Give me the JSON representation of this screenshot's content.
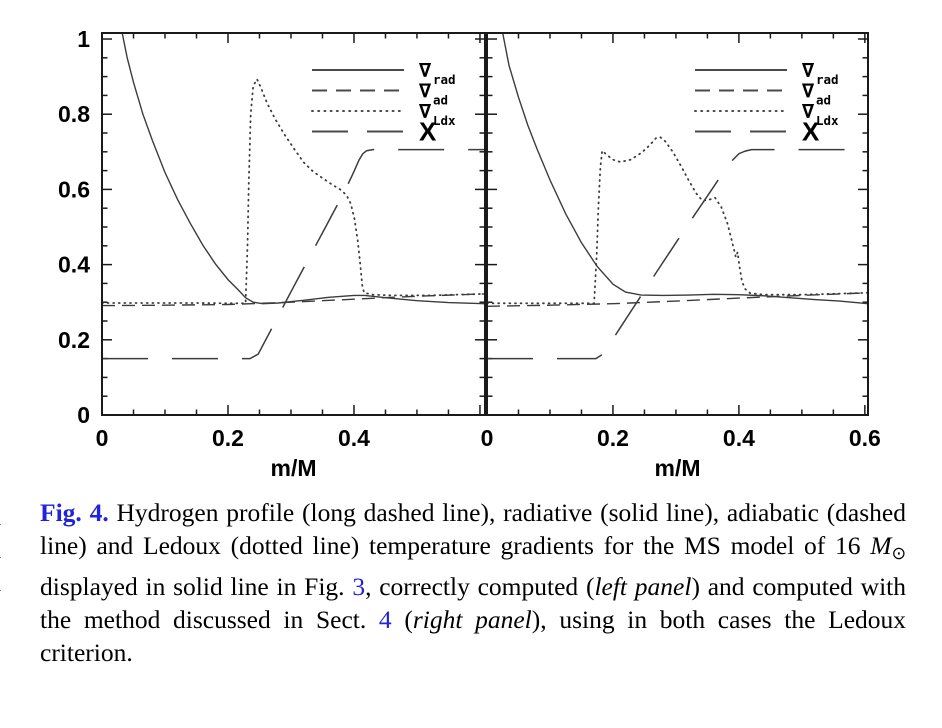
{
  "colors": {
    "curve": "#3c3c3c",
    "frame": "#1a1a1a",
    "text": "#000000",
    "link_blue": "#2222dd"
  },
  "figure": {
    "margin_fragments": [
      "1",
      "1",
      "1"
    ],
    "caption_segments": [
      {
        "text": "Fig. 4.",
        "style": "figlabel"
      },
      {
        "text": " Hydrogen profile (long dashed line), radiative (solid line), adiabatic (dashed line) and Ledoux (dotted line) temperature gradients for the MS model of 16 ",
        "style": "plain"
      },
      {
        "text": "M",
        "style": "italic"
      },
      {
        "text": "⊙",
        "style": "sub"
      },
      {
        "text": " displayed in solid line in Fig. ",
        "style": "plain"
      },
      {
        "text": "3",
        "style": "link"
      },
      {
        "text": ", correctly computed (",
        "style": "plain"
      },
      {
        "text": "left panel",
        "style": "italic"
      },
      {
        "text": ") and computed with the method discussed in Sect. ",
        "style": "plain"
      },
      {
        "text": "4",
        "style": "link"
      },
      {
        "text": " (",
        "style": "plain"
      },
      {
        "text": "right panel",
        "style": "italic"
      },
      {
        "text": "), using in both cases the Ledoux criterion.",
        "style": "plain"
      }
    ]
  },
  "chart_data": [
    {
      "type": "line",
      "panel": "left",
      "xlabel": "m/M",
      "xlim": [
        0,
        0.608
      ],
      "ylim": [
        0,
        1.016
      ],
      "x_minor_step": 0.05,
      "y_minor_step": 0.05,
      "show_y_labels": true,
      "x_ticks": [
        {
          "v": 0,
          "label": "0"
        },
        {
          "v": 0.2,
          "label": "0.2"
        },
        {
          "v": 0.4,
          "label": "0.4"
        },
        {
          "v": 0.6,
          "label": ""
        }
      ],
      "y_ticks": [
        {
          "v": 0,
          "label": "0"
        },
        {
          "v": 0.2,
          "label": "0.2"
        },
        {
          "v": 0.4,
          "label": "0.4"
        },
        {
          "v": 0.6,
          "label": "0.6"
        },
        {
          "v": 0.8,
          "label": "0.8"
        },
        {
          "v": 1,
          "label": "1"
        }
      ],
      "legend": [
        {
          "label": "∇",
          "sub": "rad",
          "style": "solid"
        },
        {
          "label": "∇",
          "sub": "ad",
          "style": "dashed"
        },
        {
          "label": "∇",
          "sub": "Ldx",
          "style": "dotted"
        },
        {
          "label": "X",
          "sub": "",
          "style": "longdash"
        }
      ],
      "series": [
        {
          "name": "nabla_rad",
          "style": "solid",
          "points": [
            [
              0.032,
              1.016
            ],
            [
              0.04,
              0.95
            ],
            [
              0.05,
              0.885
            ],
            [
              0.065,
              0.8
            ],
            [
              0.08,
              0.73
            ],
            [
              0.1,
              0.645
            ],
            [
              0.12,
              0.573
            ],
            [
              0.14,
              0.51
            ],
            [
              0.16,
              0.452
            ],
            [
              0.18,
              0.402
            ],
            [
              0.2,
              0.36
            ],
            [
              0.215,
              0.335
            ],
            [
              0.228,
              0.312
            ],
            [
              0.24,
              0.3
            ],
            [
              0.255,
              0.296
            ],
            [
              0.28,
              0.298
            ],
            [
              0.32,
              0.305
            ],
            [
              0.36,
              0.313
            ],
            [
              0.4,
              0.318
            ],
            [
              0.417,
              0.318
            ],
            [
              0.45,
              0.312
            ],
            [
              0.5,
              0.304
            ],
            [
              0.55,
              0.299
            ],
            [
              0.607,
              0.296
            ]
          ]
        },
        {
          "name": "nabla_ad",
          "style": "dashed",
          "points": [
            [
              0,
              0.291
            ],
            [
              0.1,
              0.292
            ],
            [
              0.2,
              0.294
            ],
            [
              0.3,
              0.3
            ],
            [
              0.4,
              0.308
            ],
            [
              0.46,
              0.313
            ],
            [
              0.52,
              0.317
            ],
            [
              0.607,
              0.322
            ]
          ]
        },
        {
          "name": "nabla_Ldx",
          "style": "dotted",
          "points": [
            [
              0,
              0.298
            ],
            [
              0.08,
              0.298
            ],
            [
              0.15,
              0.298
            ],
            [
              0.2,
              0.297
            ],
            [
              0.228,
              0.297
            ],
            [
              0.231,
              0.45
            ],
            [
              0.233,
              0.62
            ],
            [
              0.236,
              0.8
            ],
            [
              0.24,
              0.875
            ],
            [
              0.246,
              0.893
            ],
            [
              0.252,
              0.872
            ],
            [
              0.262,
              0.83
            ],
            [
              0.275,
              0.787
            ],
            [
              0.29,
              0.745
            ],
            [
              0.305,
              0.708
            ],
            [
              0.32,
              0.672
            ],
            [
              0.335,
              0.648
            ],
            [
              0.35,
              0.63
            ],
            [
              0.365,
              0.613
            ],
            [
              0.378,
              0.6
            ],
            [
              0.388,
              0.585
            ],
            [
              0.395,
              0.562
            ],
            [
              0.401,
              0.52
            ],
            [
              0.406,
              0.462
            ],
            [
              0.41,
              0.4
            ],
            [
              0.413,
              0.345
            ],
            [
              0.416,
              0.325
            ],
            [
              0.43,
              0.32
            ],
            [
              0.46,
              0.318
            ],
            [
              0.52,
              0.318
            ],
            [
              0.607,
              0.322
            ]
          ]
        },
        {
          "name": "X",
          "style": "longdash",
          "points": [
            [
              0,
              0.15
            ],
            [
              0.235,
              0.15
            ],
            [
              0.248,
              0.162
            ],
            [
              0.27,
              0.232
            ],
            [
              0.3,
              0.328
            ],
            [
              0.33,
              0.422
            ],
            [
              0.355,
              0.5
            ],
            [
              0.375,
              0.563
            ],
            [
              0.39,
              0.612
            ],
            [
              0.4,
              0.648
            ],
            [
              0.408,
              0.678
            ],
            [
              0.414,
              0.695
            ],
            [
              0.42,
              0.703
            ],
            [
              0.43,
              0.706
            ],
            [
              0.607,
              0.706
            ]
          ]
        }
      ]
    },
    {
      "type": "line",
      "panel": "right",
      "xlabel": "m/M",
      "xlim": [
        0,
        0.605
      ],
      "ylim": [
        0,
        1.016
      ],
      "x_minor_step": 0.05,
      "y_minor_step": 0.05,
      "show_y_labels": false,
      "x_ticks": [
        {
          "v": 0,
          "label": "0"
        },
        {
          "v": 0.2,
          "label": "0.2"
        },
        {
          "v": 0.4,
          "label": "0.4"
        },
        {
          "v": 0.6,
          "label": "0.6"
        }
      ],
      "y_ticks": [
        {
          "v": 0,
          "label": "0"
        },
        {
          "v": 0.2,
          "label": "0.2"
        },
        {
          "v": 0.4,
          "label": "0.4"
        },
        {
          "v": 0.6,
          "label": "0.6"
        },
        {
          "v": 0.8,
          "label": "0.8"
        },
        {
          "v": 1,
          "label": "1"
        }
      ],
      "legend": [
        {
          "label": "∇",
          "sub": "rad",
          "style": "solid"
        },
        {
          "label": "∇",
          "sub": "ad",
          "style": "dashed"
        },
        {
          "label": "∇",
          "sub": "Ldx",
          "style": "dotted"
        },
        {
          "label": "X",
          "sub": "",
          "style": "longdash"
        }
      ],
      "series": [
        {
          "name": "nabla_rad",
          "style": "solid",
          "points": [
            [
              0.025,
              1.016
            ],
            [
              0.035,
              0.93
            ],
            [
              0.05,
              0.845
            ],
            [
              0.065,
              0.77
            ],
            [
              0.08,
              0.705
            ],
            [
              0.1,
              0.625
            ],
            [
              0.125,
              0.535
            ],
            [
              0.15,
              0.458
            ],
            [
              0.175,
              0.395
            ],
            [
              0.2,
              0.348
            ],
            [
              0.22,
              0.327
            ],
            [
              0.245,
              0.319
            ],
            [
              0.28,
              0.318
            ],
            [
              0.32,
              0.319
            ],
            [
              0.36,
              0.321
            ],
            [
              0.4,
              0.32
            ],
            [
              0.44,
              0.317
            ],
            [
              0.48,
              0.312
            ],
            [
              0.52,
              0.307
            ],
            [
              0.56,
              0.303
            ],
            [
              0.605,
              0.296
            ]
          ]
        },
        {
          "name": "nabla_ad",
          "style": "dashed",
          "points": [
            [
              0,
              0.289
            ],
            [
              0.1,
              0.292
            ],
            [
              0.2,
              0.296
            ],
            [
              0.3,
              0.303
            ],
            [
              0.4,
              0.311
            ],
            [
              0.5,
              0.318
            ],
            [
              0.605,
              0.325
            ]
          ]
        },
        {
          "name": "nabla_Ldx",
          "style": "dotted",
          "points": [
            [
              0,
              0.297
            ],
            [
              0.08,
              0.297
            ],
            [
              0.14,
              0.297
            ],
            [
              0.17,
              0.297
            ],
            [
              0.174,
              0.42
            ],
            [
              0.177,
              0.56
            ],
            [
              0.18,
              0.66
            ],
            [
              0.183,
              0.703
            ],
            [
              0.19,
              0.692
            ],
            [
              0.2,
              0.679
            ],
            [
              0.212,
              0.673
            ],
            [
              0.228,
              0.679
            ],
            [
              0.245,
              0.697
            ],
            [
              0.258,
              0.717
            ],
            [
              0.268,
              0.736
            ],
            [
              0.275,
              0.739
            ],
            [
              0.283,
              0.728
            ],
            [
              0.295,
              0.7
            ],
            [
              0.308,
              0.662
            ],
            [
              0.32,
              0.625
            ],
            [
              0.332,
              0.59
            ],
            [
              0.342,
              0.57
            ],
            [
              0.352,
              0.572
            ],
            [
              0.362,
              0.578
            ],
            [
              0.372,
              0.553
            ],
            [
              0.382,
              0.508
            ],
            [
              0.39,
              0.455
            ],
            [
              0.395,
              0.42
            ],
            [
              0.398,
              0.433
            ],
            [
              0.401,
              0.395
            ],
            [
              0.405,
              0.355
            ],
            [
              0.41,
              0.335
            ],
            [
              0.418,
              0.324
            ],
            [
              0.44,
              0.32
            ],
            [
              0.5,
              0.32
            ],
            [
              0.605,
              0.325
            ]
          ]
        },
        {
          "name": "X",
          "style": "longdash",
          "points": [
            [
              0,
              0.15
            ],
            [
              0.173,
              0.15
            ],
            [
              0.185,
              0.163
            ],
            [
              0.21,
              0.228
            ],
            [
              0.24,
              0.305
            ],
            [
              0.27,
              0.382
            ],
            [
              0.3,
              0.458
            ],
            [
              0.33,
              0.533
            ],
            [
              0.355,
              0.595
            ],
            [
              0.375,
              0.645
            ],
            [
              0.39,
              0.678
            ],
            [
              0.4,
              0.695
            ],
            [
              0.41,
              0.702
            ],
            [
              0.42,
              0.706
            ],
            [
              0.605,
              0.706
            ]
          ]
        }
      ]
    }
  ]
}
